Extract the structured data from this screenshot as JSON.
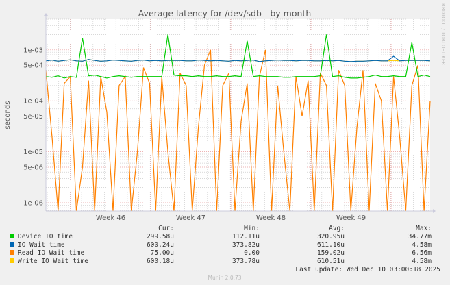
{
  "chart_data": {
    "type": "line",
    "title": "Average latency for /dev/sdb - by month",
    "ylabel": "seconds",
    "xlabel": "",
    "yscale": "log",
    "ylim": [
      6.9e-07,
      0.004
    ],
    "yticks": [
      "1e-03",
      "5e-04",
      "1e-04",
      "5e-05",
      "1e-05",
      "5e-06",
      "1e-06"
    ],
    "ytick_values": [
      0.001,
      0.0005,
      0.0001,
      5e-05,
      1e-05,
      5e-06,
      1e-06
    ],
    "xticks": [
      "Week 46",
      "Week 47",
      "Week 48",
      "Week 49"
    ],
    "grid": true,
    "legend_placement": "bottom",
    "series": [
      {
        "name": "Read IO Wait time",
        "color": "#ff8000",
        "values": [
          0.0004,
          2e-05,
          0,
          0.00022,
          0.0003,
          0,
          5e-06,
          0.00025,
          0,
          0.0003,
          6e-05,
          0,
          0.0002,
          0.0003,
          0,
          1e-05,
          0.00045,
          0.00022,
          0,
          0.0003,
          1e-05,
          0,
          0.00035,
          0.0002,
          0,
          3e-05,
          0.0005,
          0.001,
          0,
          0.0002,
          0.00035,
          0,
          4e-05,
          0.00022,
          0,
          0.0003,
          0.001,
          0,
          0.0002,
          1e-05,
          0,
          0.0003,
          5e-05,
          0.00025,
          0,
          0.00035,
          0.0002,
          0,
          0.0004,
          0.0002,
          0,
          3e-05,
          0.0004,
          0,
          0.00022,
          0.0001,
          0,
          0.0003,
          2e-05,
          0,
          0.0002,
          0.0005,
          0,
          0.0001
        ]
      },
      {
        "name": "Write IO Wait time",
        "color": "#ffcc00",
        "values": [
          0.00061,
          0.00063,
          0.0006,
          0.00062,
          0.00064,
          0.00061,
          0.0006,
          0.00065,
          0.00062,
          0.0006,
          0.00061,
          0.00063,
          0.00062,
          0.00061,
          0.0006,
          0.00062,
          0.00063,
          0.00061,
          0.00062,
          0.00061,
          0.00062,
          0.00062,
          0.00062,
          0.00061,
          0.00061,
          0.00063,
          0.00062,
          0.00061,
          0.00062,
          0.00061,
          0.0006,
          0.00062,
          0.00061,
          0.00062,
          0.00063,
          0.00059,
          0.00061,
          0.00062,
          0.00063,
          0.00062,
          0.00062,
          0.00061,
          0.00062,
          0.00062,
          0.00061,
          0.00061,
          0.00062,
          0.00061,
          0.00062,
          0.0006,
          0.00059,
          0.0006,
          0.0006,
          0.00061,
          0.00062,
          0.00061,
          0.00061,
          0.00062,
          0.00061,
          0.00062,
          0.00062,
          0.00062,
          0.00062,
          0.00061
        ]
      },
      {
        "name": "IO Wait time",
        "color": "#0066b3",
        "values": [
          0.00061,
          0.00063,
          0.0006,
          0.00062,
          0.00064,
          0.00061,
          0.0006,
          0.00065,
          0.00062,
          0.0006,
          0.00061,
          0.00063,
          0.00062,
          0.00061,
          0.0006,
          0.00062,
          0.00063,
          0.00061,
          0.00062,
          0.00061,
          0.00062,
          0.00062,
          0.00062,
          0.00061,
          0.00061,
          0.00063,
          0.00062,
          0.00061,
          0.00062,
          0.00061,
          0.0006,
          0.00062,
          0.00061,
          0.00062,
          0.00063,
          0.00059,
          0.00061,
          0.00062,
          0.00063,
          0.00062,
          0.00062,
          0.00061,
          0.00062,
          0.00062,
          0.00061,
          0.00061,
          0.00062,
          0.00061,
          0.00062,
          0.0006,
          0.00059,
          0.0006,
          0.0006,
          0.00061,
          0.00062,
          0.00061,
          0.00061,
          0.00075,
          0.00061,
          0.00062,
          0.00062,
          0.00062,
          0.00062,
          0.00061
        ]
      },
      {
        "name": "Device IO time",
        "color": "#00cc00",
        "values": [
          0.0003,
          0.00029,
          0.00031,
          0.00028,
          0.0003,
          0.00029,
          0.0017,
          0.00031,
          0.00032,
          0.0003,
          0.00028,
          0.0003,
          0.00031,
          0.0003,
          0.00029,
          0.0003,
          0.0003,
          0.0003,
          0.0003,
          0.0003,
          0.002,
          0.00032,
          0.00031,
          0.00031,
          0.0003,
          0.00031,
          0.0003,
          0.0003,
          0.00031,
          0.0003,
          0.0003,
          0.00031,
          0.0003,
          0.0015,
          0.0003,
          0.00031,
          0.0003,
          0.0003,
          0.0003,
          0.00029,
          0.00029,
          0.0003,
          0.0003,
          0.0003,
          0.0003,
          0.00031,
          0.002,
          0.0003,
          0.00031,
          0.00029,
          0.00028,
          0.00028,
          0.00029,
          0.0003,
          0.00032,
          0.0003,
          0.0003,
          0.00031,
          0.0003,
          0.0003,
          0.0014,
          0.0003,
          0.00032,
          0.0003
        ]
      }
    ]
  },
  "legend": {
    "headers": [
      "Cur:",
      "Min:",
      "Avg:",
      "Max:"
    ],
    "rows": [
      {
        "label": "Device IO time",
        "color": "#00cc00",
        "cur": "299.58u",
        "min": "112.11u",
        "avg": "320.95u",
        "max": "34.77m"
      },
      {
        "label": "IO Wait time",
        "color": "#0066b3",
        "cur": "600.24u",
        "min": "373.82u",
        "avg": "611.10u",
        "max": "4.58m"
      },
      {
        "label": "Read IO Wait time",
        "color": "#ff8000",
        "cur": "75.00u",
        "min": "0.00",
        "avg": "159.02u",
        "max": "6.56m"
      },
      {
        "label": "Write IO Wait time",
        "color": "#ffcc00",
        "cur": "600.18u",
        "min": "373.78u",
        "avg": "610.51u",
        "max": "4.58m"
      }
    ],
    "last_update": "Last update: Wed Dec 10 03:00:18 2025"
  },
  "watermark": "RRDTOOL / TOBI OETIKER",
  "footer": "Munin 2.0.73"
}
